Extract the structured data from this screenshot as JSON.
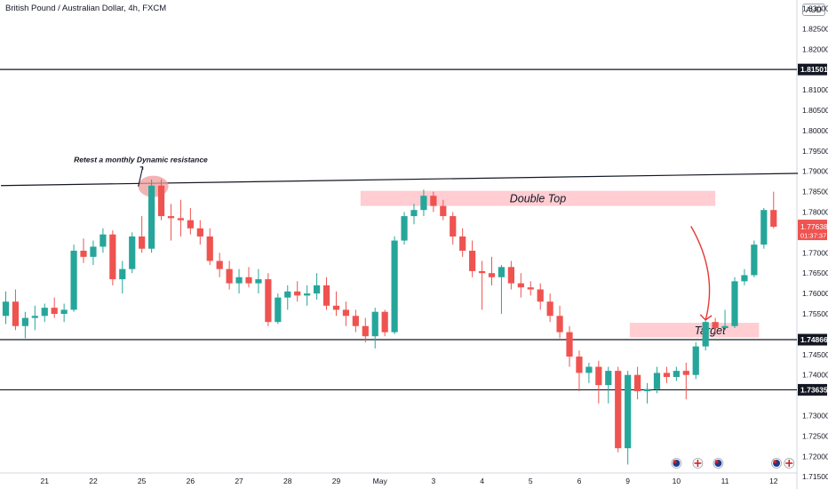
{
  "header": {
    "title": "British Pound / Australian Dollar, 4h, FXCM",
    "currency": "AUD"
  },
  "colors": {
    "up": "#26a69a",
    "down": "#ef5350",
    "zone": "#ffcdd2",
    "line": "#131722",
    "arrow": "#e53935",
    "price_box": "#ef5350",
    "grid": "#d1d4dc"
  },
  "chart_data": {
    "type": "candlestick",
    "title": "British Pound / Australian Dollar, 4h, FXCM",
    "ylim": [
      1.7155,
      1.832
    ],
    "y_ticks": [
      1.715,
      1.72,
      1.725,
      1.73,
      1.74,
      1.745,
      1.755,
      1.76,
      1.765,
      1.77,
      1.78,
      1.785,
      1.79,
      1.795,
      1.8,
      1.805,
      1.81,
      1.82,
      1.825,
      1.83
    ],
    "y_tick_labels": [
      "1.71500",
      "1.72000",
      "1.72500",
      "1.73000",
      "1.74000",
      "1.74500",
      "1.75500",
      "1.76000",
      "1.76500",
      "1.77000",
      "1.78000",
      "1.78500",
      "1.79000",
      "1.79500",
      "1.80000",
      "1.80500",
      "1.81000",
      "1.82000",
      "1.82500",
      "1.83000"
    ],
    "x_ticks": [
      "21",
      "22",
      "25",
      "26",
      "27",
      "28",
      "29",
      "May",
      "3",
      "4",
      "5",
      "6",
      "9",
      "10",
      "11",
      "12"
    ],
    "x_tick_index": [
      4,
      9,
      14,
      19,
      24,
      29,
      34,
      38.5,
      44,
      49,
      54,
      59,
      64,
      69,
      74,
      79
    ],
    "horizontal_levels": [
      {
        "price": 1.81501,
        "label": "1.81501"
      },
      {
        "price": 1.74866,
        "label": "1.74866"
      },
      {
        "price": 1.73635,
        "label": "1.73635"
      }
    ],
    "last_price": {
      "price": 1.77638,
      "label": "1.77638",
      "countdown": "01:37:37"
    },
    "trendline": {
      "from": {
        "index": -0.5,
        "price": 1.7865
      },
      "to": {
        "index": 81.5,
        "price": 1.7895
      }
    },
    "zones": [
      {
        "label": "Double Top",
        "from_index": 36.5,
        "to_index": 73,
        "top": 1.7852,
        "bottom": 1.7815
      },
      {
        "label": "Target",
        "from_index": 64.2,
        "to_index": 77.5,
        "top": 1.7528,
        "bottom": 1.7492
      }
    ],
    "annotations": [
      {
        "text": "Retest a monthly Dynamic resistance",
        "index": 7,
        "price": 1.7922
      }
    ],
    "circle": {
      "index": 15,
      "price": 1.7863
    },
    "arrow": {
      "from": {
        "index": 70.5,
        "price": 1.7765
      },
      "to": {
        "index": 72,
        "price": 1.7535
      }
    },
    "event_flags": [
      {
        "index": 69,
        "icon": "au-flag-icon"
      },
      {
        "index": 71.2,
        "icon": "uk-flag-icon"
      },
      {
        "index": 73.3,
        "icon": "au-flag-icon"
      },
      {
        "index": 79.3,
        "icon": "au-flag-icon"
      },
      {
        "index": 80.6,
        "icon": "uk-flag-icon"
      }
    ],
    "candles": [
      [
        1.7545,
        1.7605,
        1.7525,
        1.758
      ],
      [
        1.758,
        1.761,
        1.751,
        1.752
      ],
      [
        1.752,
        1.7555,
        1.749,
        1.754
      ],
      [
        1.754,
        1.757,
        1.751,
        1.7545
      ],
      [
        1.7545,
        1.7575,
        1.753,
        1.7565
      ],
      [
        1.7565,
        1.759,
        1.754,
        1.755
      ],
      [
        1.755,
        1.7575,
        1.753,
        1.756
      ],
      [
        1.756,
        1.772,
        1.7555,
        1.7705
      ],
      [
        1.7705,
        1.7735,
        1.7675,
        1.769
      ],
      [
        1.769,
        1.773,
        1.767,
        1.7715
      ],
      [
        1.7715,
        1.776,
        1.77,
        1.7745
      ],
      [
        1.7745,
        1.7755,
        1.762,
        1.7635
      ],
      [
        1.7635,
        1.768,
        1.76,
        1.766
      ],
      [
        1.766,
        1.775,
        1.765,
        1.774
      ],
      [
        1.774,
        1.779,
        1.77,
        1.771
      ],
      [
        1.771,
        1.788,
        1.77,
        1.7865
      ],
      [
        1.7865,
        1.788,
        1.778,
        1.779
      ],
      [
        1.779,
        1.782,
        1.773,
        1.7785
      ],
      [
        1.7785,
        1.783,
        1.774,
        1.778
      ],
      [
        1.778,
        1.781,
        1.7745,
        1.776
      ],
      [
        1.776,
        1.778,
        1.772,
        1.774
      ],
      [
        1.774,
        1.776,
        1.767,
        1.768
      ],
      [
        1.768,
        1.77,
        1.764,
        1.766
      ],
      [
        1.766,
        1.768,
        1.761,
        1.7625
      ],
      [
        1.7625,
        1.766,
        1.76,
        1.764
      ],
      [
        1.764,
        1.7665,
        1.7615,
        1.7625
      ],
      [
        1.7625,
        1.766,
        1.76,
        1.7635
      ],
      [
        1.7635,
        1.765,
        1.752,
        1.753
      ],
      [
        1.753,
        1.76,
        1.7525,
        1.759
      ],
      [
        1.759,
        1.762,
        1.756,
        1.7605
      ],
      [
        1.7605,
        1.763,
        1.758,
        1.7595
      ],
      [
        1.7595,
        1.762,
        1.757,
        1.76
      ],
      [
        1.76,
        1.765,
        1.7585,
        1.762
      ],
      [
        1.762,
        1.764,
        1.756,
        1.757
      ],
      [
        1.757,
        1.7605,
        1.7545,
        1.756
      ],
      [
        1.756,
        1.758,
        1.752,
        1.7545
      ],
      [
        1.7545,
        1.756,
        1.7505,
        1.752
      ],
      [
        1.752,
        1.754,
        1.748,
        1.7495
      ],
      [
        1.7495,
        1.7565,
        1.7465,
        1.7555
      ],
      [
        1.7555,
        1.756,
        1.7495,
        1.7505
      ],
      [
        1.7505,
        1.774,
        1.75,
        1.773
      ],
      [
        1.773,
        1.78,
        1.772,
        1.779
      ],
      [
        1.779,
        1.782,
        1.777,
        1.7805
      ],
      [
        1.7805,
        1.7855,
        1.779,
        1.784
      ],
      [
        1.784,
        1.785,
        1.78,
        1.7815
      ],
      [
        1.7815,
        1.783,
        1.778,
        1.779
      ],
      [
        1.779,
        1.78,
        1.772,
        1.774
      ],
      [
        1.774,
        1.776,
        1.769,
        1.7705
      ],
      [
        1.7705,
        1.773,
        1.764,
        1.7655
      ],
      [
        1.7655,
        1.768,
        1.756,
        1.765
      ],
      [
        1.765,
        1.769,
        1.762,
        1.764
      ],
      [
        1.764,
        1.767,
        1.755,
        1.7665
      ],
      [
        1.7665,
        1.768,
        1.761,
        1.7625
      ],
      [
        1.7625,
        1.765,
        1.759,
        1.7615
      ],
      [
        1.7615,
        1.763,
        1.7595,
        1.761
      ],
      [
        1.761,
        1.7625,
        1.756,
        1.758
      ],
      [
        1.758,
        1.76,
        1.753,
        1.7545
      ],
      [
        1.7545,
        1.757,
        1.749,
        1.7505
      ],
      [
        1.7505,
        1.752,
        1.742,
        1.7445
      ],
      [
        1.7445,
        1.746,
        1.736,
        1.7405
      ],
      [
        1.7405,
        1.743,
        1.738,
        1.742
      ],
      [
        1.742,
        1.7435,
        1.733,
        1.7375
      ],
      [
        1.7375,
        1.742,
        1.733,
        1.741
      ],
      [
        1.741,
        1.742,
        1.721,
        1.722
      ],
      [
        1.722,
        1.741,
        1.718,
        1.74
      ],
      [
        1.74,
        1.742,
        1.734,
        1.736
      ],
      [
        1.736,
        1.738,
        1.733,
        1.7365
      ],
      [
        1.7365,
        1.742,
        1.7355,
        1.7405
      ],
      [
        1.7405,
        1.742,
        1.738,
        1.7395
      ],
      [
        1.7395,
        1.742,
        1.7385,
        1.741
      ],
      [
        1.741,
        1.743,
        1.734,
        1.74
      ],
      [
        1.74,
        1.748,
        1.739,
        1.747
      ],
      [
        1.747,
        1.7535,
        1.746,
        1.753
      ],
      [
        1.753,
        1.754,
        1.75,
        1.7515
      ],
      [
        1.7515,
        1.756,
        1.751,
        1.752
      ],
      [
        1.752,
        1.764,
        1.7515,
        1.763
      ],
      [
        1.763,
        1.766,
        1.762,
        1.7645
      ],
      [
        1.7645,
        1.773,
        1.764,
        1.772
      ],
      [
        1.772,
        1.781,
        1.771,
        1.7805
      ],
      [
        1.7805,
        1.785,
        1.776,
        1.7764
      ]
    ]
  }
}
